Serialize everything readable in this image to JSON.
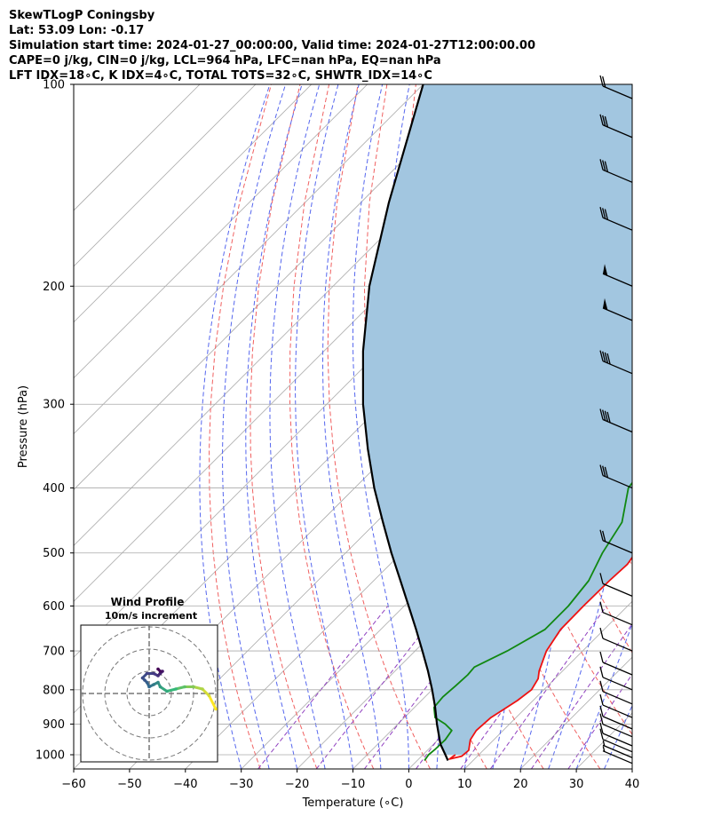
{
  "header": {
    "line1": "SkewTLogP Coningsby",
    "line2": "Lat: 53.09   Lon: -0.17",
    "line3": "Simulation start time: 2024-01-27_00:00:00, Valid time: 2024-01-27T12:00:00.00",
    "line4": "CAPE=0 j/kg, CIN=0 j/kg, LCL=964 hPa, LFC=nan hPa, EQ=nan hPa",
    "line5": "LFT IDX=18∘C, K IDX=4∘C, TOTAL TOTS=32∘C, SHWTR_IDX=14∘C"
  },
  "chart_data": [
    {
      "type": "line",
      "subtype": "skew-t log-p",
      "xlabel": "Temperature (∘C)",
      "ylabel": "Pressure (hPa)",
      "x_ticks": [
        -60,
        -50,
        -40,
        -30,
        -20,
        -10,
        0,
        10,
        20,
        30,
        40
      ],
      "x_tick_labels": [
        "−60",
        "−50",
        "−40",
        "−30",
        "−20",
        "−10",
        "0",
        "10",
        "20",
        "30",
        "40"
      ],
      "y_ticks": [
        100,
        200,
        300,
        400,
        500,
        600,
        700,
        800,
        900,
        1000
      ],
      "xlim": [
        -60,
        40
      ],
      "ylim": [
        1050,
        100
      ],
      "y_scale": "log",
      "skew": "isotherms slanted 45 degrees",
      "grid": true,
      "colors": {
        "temperature": "#ee1111",
        "dewpoint": "#118811",
        "parcel": "#000000",
        "cape_shade": "#a2c6e0",
        "dry_adiabat": "#f06060",
        "moist_adiabat": "#5566ee",
        "mixing_ratio": "#9040c0",
        "isotherm": "#aaaaaa"
      },
      "series": [
        {
          "key": "temperature",
          "pressure": [
            1000,
            1015,
            1005,
            985,
            950,
            920,
            880,
            850,
            830,
            800,
            770,
            750,
            700,
            650,
            600,
            550,
            520,
            500,
            450,
            400,
            370,
            340,
            310,
            280,
            250,
            230,
            210,
            200,
            180,
            160,
            150,
            140,
            130,
            120,
            110,
            100
          ],
          "values": [
            5.8,
            5.5,
            7.2,
            7.4,
            5.8,
            5.2,
            5.5,
            6.5,
            7.2,
            7.8,
            7.0,
            5.8,
            3.5,
            2.2,
            2.1,
            2.2,
            2.5,
            1.9,
            -0.8,
            -4.2,
            -6.8,
            -10.2,
            -13.2,
            -15.6,
            -17.5,
            -19.2,
            -20.8,
            -21.3,
            -19.5,
            -16.0,
            -13.5,
            -11.5,
            -10.0,
            -9.0,
            -8.1,
            -7.9
          ]
        },
        {
          "key": "dewpoint",
          "pressure": [
            1020,
            1000,
            980,
            950,
            920,
            900,
            880,
            850,
            820,
            790,
            760,
            740,
            700,
            650,
            600,
            550,
            500,
            450,
            400,
            370,
            340,
            310,
            280,
            250,
            230,
            200,
            190,
            180,
            170,
            160,
            150,
            140,
            130,
            120,
            110,
            100
          ],
          "values": [
            1.3,
            1.0,
            1.2,
            1.3,
            0.8,
            -1.5,
            -4.5,
            -6.5,
            -6.8,
            -6.5,
            -6.3,
            -6.5,
            -3.5,
            -0.6,
            -0.6,
            -1.5,
            -4.0,
            -6.0,
            -11.0,
            -12.0,
            -12.0,
            -13.5,
            -16.0,
            -18.5,
            -20.0,
            -22.5,
            -21.8,
            -20.0,
            -19.5,
            -21.5,
            -23.0,
            -22.0,
            -21.0,
            -19.5,
            -17.5,
            -16.1
          ]
        },
        {
          "key": "parcel",
          "pressure": [
            1020,
            1000,
            964,
            900,
            850,
            800,
            750,
            700,
            650,
            600,
            550,
            500,
            450,
            400,
            350,
            300,
            250,
            200,
            150,
            100
          ],
          "values": [
            5.5,
            4.0,
            1.2,
            -3.0,
            -6.3,
            -10.0,
            -14.1,
            -18.7,
            -23.7,
            -29.2,
            -35.2,
            -41.8,
            -48.8,
            -56.5,
            -64.6,
            -73.5,
            -83.0,
            -93.5,
            -105.0,
            -120.0
          ]
        }
      ],
      "wind_barbs": {
        "pressure": [
          1030,
          1010,
          990,
          970,
          940,
          915,
          880,
          840,
          800,
          760,
          700,
          640,
          580,
          500,
          400,
          330,
          270,
          225,
          200,
          165,
          140,
          120,
          105
        ],
        "speed_kt": [
          5,
          5,
          10,
          10,
          10,
          10,
          10,
          10,
          10,
          10,
          10,
          10,
          10,
          20,
          30,
          40,
          40,
          50,
          50,
          30,
          30,
          30,
          20
        ]
      }
    },
    {
      "type": "scatter",
      "subtype": "hodograph",
      "title": "Wind Profile",
      "subtitle": "10m/s increment",
      "rings_ms": [
        10,
        20,
        30
      ],
      "u": [
        30,
        27,
        24,
        20,
        16,
        12,
        8,
        5,
        4,
        2,
        0,
        -1,
        -2,
        -3,
        -1,
        2,
        4,
        5,
        6,
        5,
        4
      ],
      "v": [
        -7,
        -1,
        2,
        3,
        3,
        2,
        1,
        3,
        5,
        4,
        3,
        5,
        6,
        7,
        9,
        9,
        8,
        9,
        10,
        10,
        11
      ],
      "colormap": [
        "#fde725",
        "#35b779",
        "#31688e",
        "#443983",
        "#440154"
      ]
    }
  ]
}
